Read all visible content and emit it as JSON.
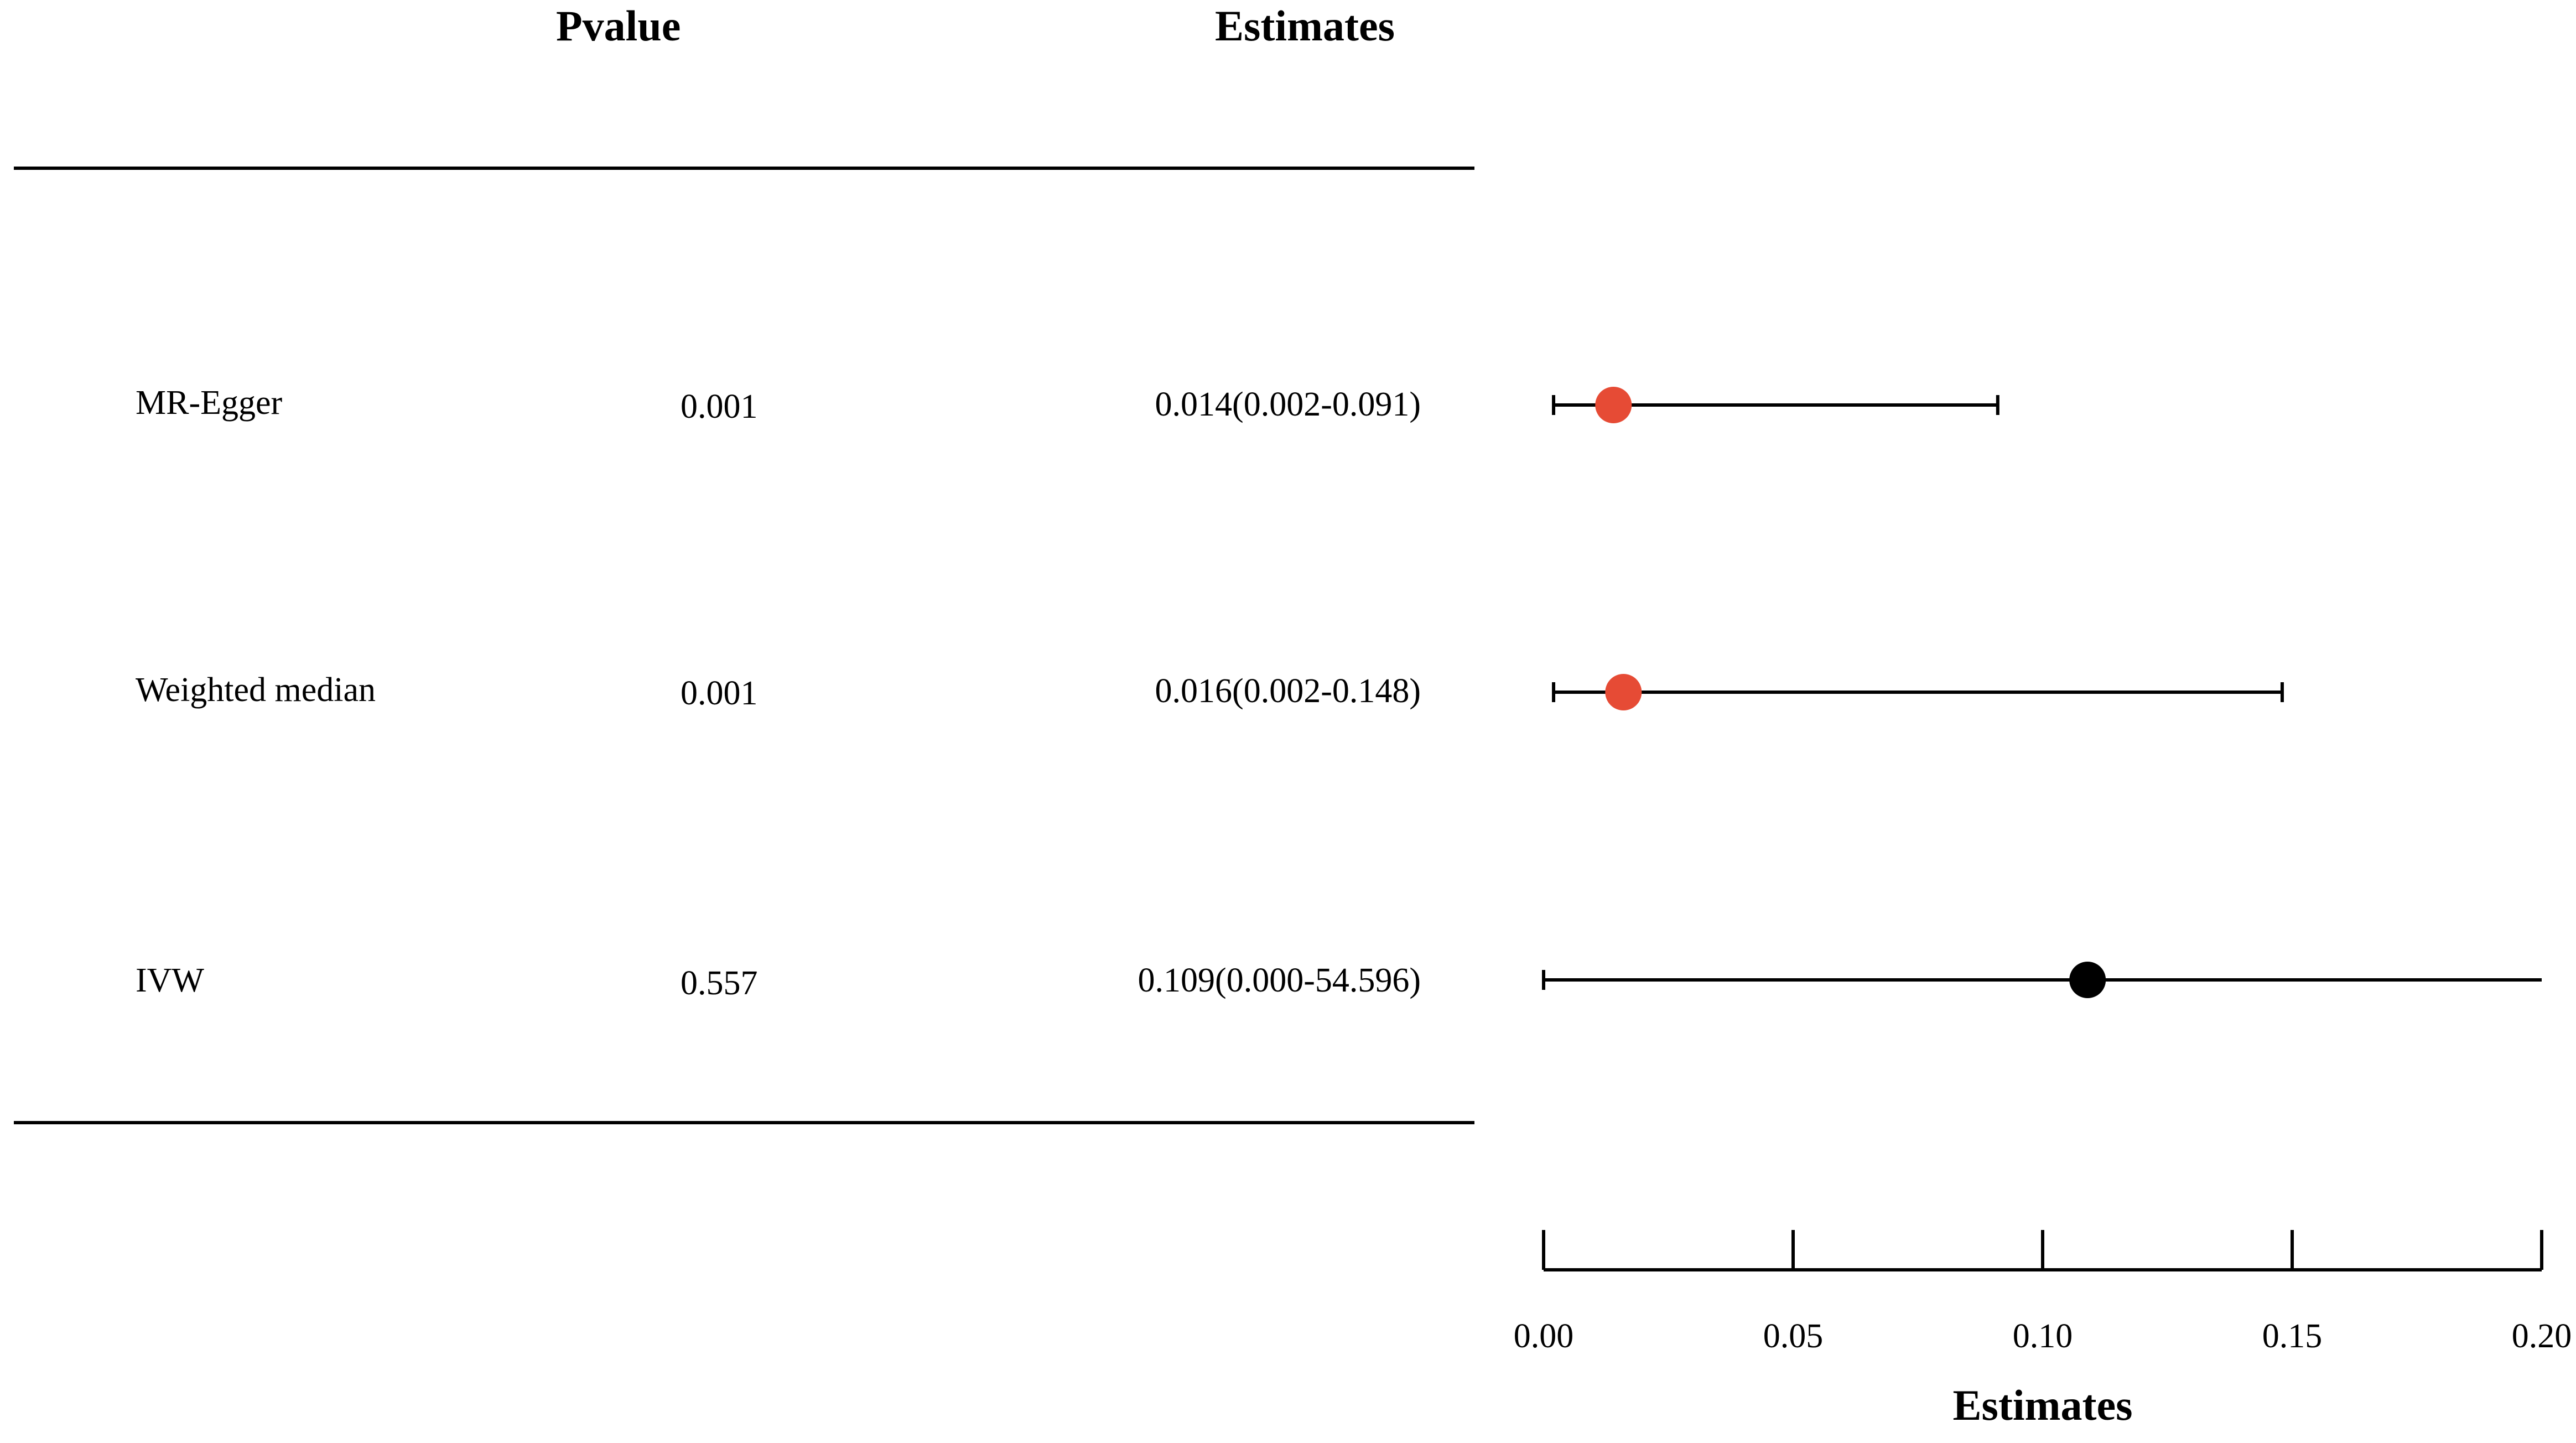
{
  "columns": {
    "pvalue": "Pvalue",
    "estimates": "Estimates"
  },
  "rows": [
    {
      "method": "MR-Egger",
      "pvalue": "0.001",
      "estimate_text": "0.014(0.002-0.091)"
    },
    {
      "method": "Weighted median",
      "pvalue": "0.001",
      "estimate_text": "0.016(0.002-0.148)"
    },
    {
      "method": "IVW",
      "pvalue": "0.557",
      "estimate_text": "0.109(0.000-54.596)"
    }
  ],
  "chart_data": {
    "type": "scatter",
    "subtype": "forest",
    "xlabel": "Estimates",
    "xlim": [
      0.0,
      0.2
    ],
    "xticks": [
      0.0,
      0.05,
      0.1,
      0.15,
      0.2
    ],
    "xtick_labels": [
      "0.00",
      "0.05",
      "0.10",
      "0.15",
      "0.20"
    ],
    "points": [
      {
        "method": "MR-Egger",
        "estimate": 0.014,
        "lower": 0.002,
        "upper": 0.091,
        "color": "#E64B35",
        "clipped_right": false
      },
      {
        "method": "Weighted median",
        "estimate": 0.016,
        "lower": 0.002,
        "upper": 0.148,
        "color": "#E64B35",
        "clipped_right": false
      },
      {
        "method": "IVW",
        "estimate": 0.109,
        "lower": 0.0,
        "upper": 54.596,
        "color": "#000000",
        "clipped_right": true
      }
    ]
  }
}
